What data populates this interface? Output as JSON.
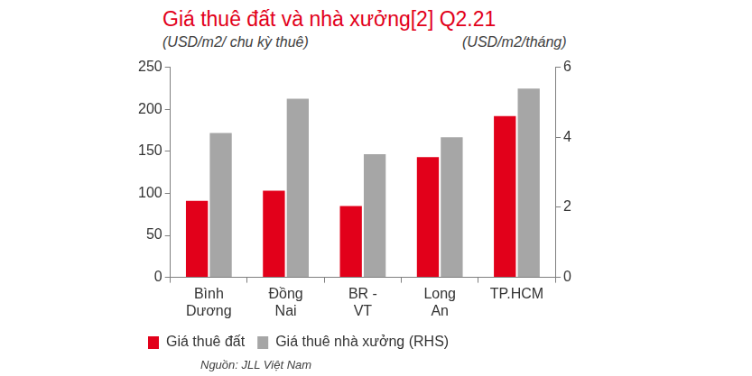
{
  "chart_data": {
    "type": "bar",
    "title": "Giá thuê đất và nhà xưởng[2] Q2.21",
    "y_label": "(USD/m2/ chu kỳ thuê)",
    "y2_label": "(USD/m2/tháng)",
    "source": "Nguồn: JLL Việt Nam",
    "categories": [
      "Bình\nDương",
      "Đồng\nNai",
      "BR -\nVT",
      "Long\nAn",
      "TP.HCM"
    ],
    "series": [
      {
        "name": "Giá thuê đất",
        "color": "#e2001a",
        "values": [
          91,
          103,
          85,
          143,
          192
        ]
      },
      {
        "name": "Giá thuê nhà xưởng (RHS)",
        "color": "#a6a6a6",
        "axis": "y2",
        "values": [
          4.12,
          5.1,
          3.52,
          4.0,
          5.39
        ]
      }
    ],
    "ylim": [
      0,
      250
    ],
    "yticks": [
      0,
      50,
      100,
      150,
      200,
      250
    ],
    "y2lim": [
      0,
      6
    ],
    "y2ticks": [
      0,
      2,
      4,
      6
    ],
    "grid": false,
    "legend": "bottom"
  }
}
